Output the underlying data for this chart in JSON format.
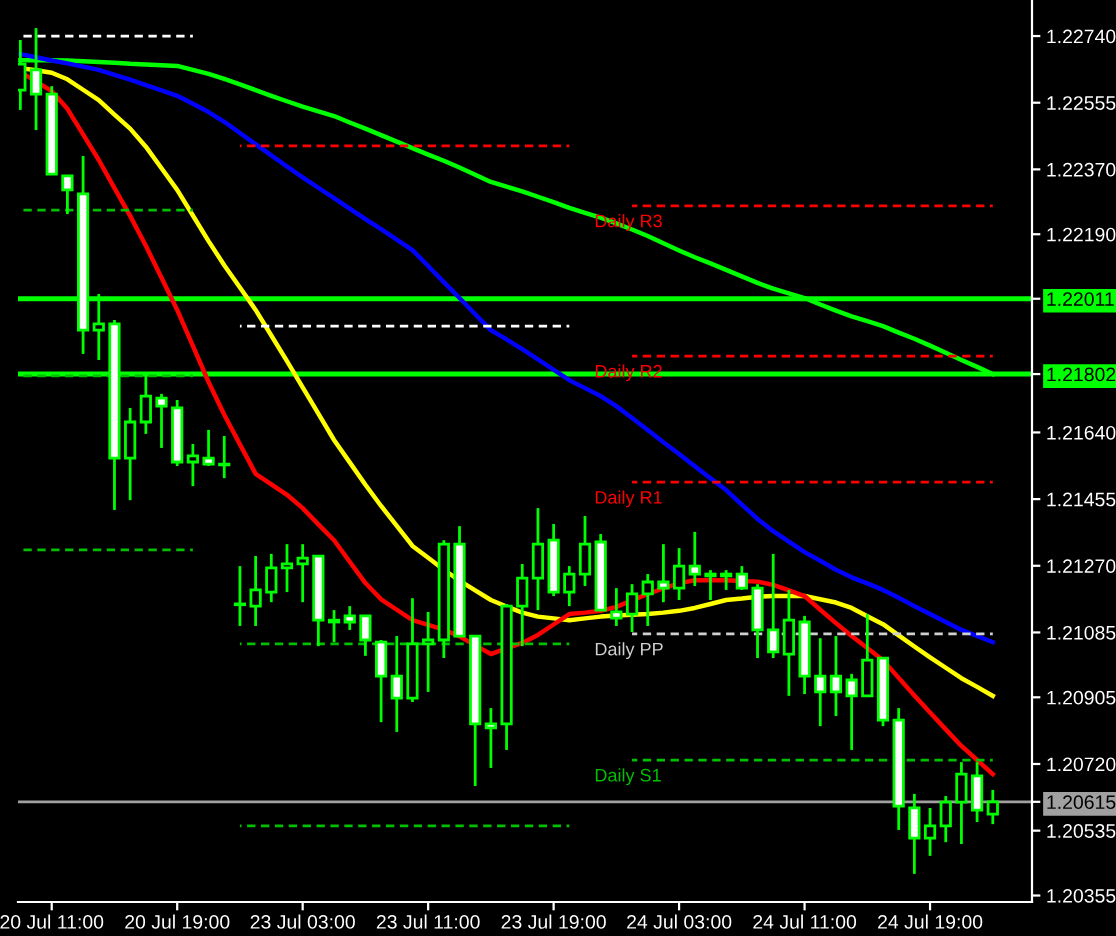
{
  "chart_data": {
    "type": "candlestick",
    "categories": [
      null,
      null,
      "20 Jul 11:00",
      null,
      null,
      null,
      null,
      null,
      null,
      null,
      "20 Jul 19:00",
      null,
      null,
      null,
      null,
      null,
      null,
      null,
      "23 Jul 03:00",
      null,
      null,
      null,
      null,
      null,
      null,
      null,
      "23 Jul 11:00",
      null,
      null,
      null,
      null,
      null,
      null,
      null,
      "23 Jul 19:00",
      null,
      null,
      null,
      null,
      null,
      null,
      null,
      "24 Jul 03:00",
      null,
      null,
      null,
      null,
      null,
      null,
      null,
      "24 Jul 11:00",
      null,
      null,
      null,
      null,
      null,
      null,
      null,
      "24 Jul 19:00",
      null,
      null,
      null,
      null,
      null,
      null
    ],
    "ylim": [
      1.20337,
      1.2284
    ],
    "yticks": [
      {
        "value": 1.2274,
        "label": "1.22740"
      },
      {
        "value": 1.22555,
        "label": "1.22555"
      },
      {
        "value": 1.2237,
        "label": "1.22370"
      },
      {
        "value": 1.2219,
        "label": "1.22190"
      },
      {
        "value": 1.22011,
        "label": "1.22011"
      },
      {
        "value": 1.21802,
        "label": "1.21802"
      },
      {
        "value": 1.2164,
        "label": "1.21640"
      },
      {
        "value": 1.21455,
        "label": "1.21455"
      },
      {
        "value": 1.2127,
        "label": "1.21270"
      },
      {
        "value": 1.21085,
        "label": "1.21085"
      },
      {
        "value": 1.20905,
        "label": "1.20905"
      },
      {
        "value": 1.2072,
        "label": "1.20720"
      },
      {
        "value": 1.20615,
        "label": "1.20615"
      },
      {
        "value": 1.20535,
        "label": "1.20535"
      },
      {
        "value": 1.20355,
        "label": "1.20355"
      }
    ],
    "ref_lines": [
      {
        "axis": "y",
        "value": 1.22011,
        "color": "#00ff00",
        "line_style": "solid"
      },
      {
        "axis": "y",
        "value": 1.21802,
        "color": "#00ff00",
        "line_style": "solid"
      },
      {
        "axis": "y",
        "value": 1.20615,
        "color": "#a0a0a0",
        "line_style": "solid"
      }
    ],
    "series": [
      {
        "type": "line",
        "color": "#00ff00",
        "line_style": "solid",
        "values": [
          1.22673,
          1.22673,
          1.22673,
          1.22672,
          1.2267,
          1.22668,
          1.22666,
          1.22663,
          1.22661,
          1.22659,
          1.22657,
          1.22646,
          1.22635,
          1.22621,
          1.22606,
          1.2259,
          1.22574,
          1.22559,
          1.22544,
          1.22531,
          1.22518,
          1.225,
          1.22483,
          1.22465,
          1.22447,
          1.22429,
          1.22411,
          1.22394,
          1.22375,
          1.22355,
          1.22335,
          1.22322,
          1.22309,
          1.22294,
          1.22279,
          1.22263,
          1.22249,
          1.22236,
          1.2222,
          1.22203,
          1.22185,
          1.22165,
          1.22145,
          1.22126,
          1.22109,
          1.22091,
          1.22073,
          1.22055,
          1.22039,
          1.22026,
          1.22013,
          1.21995,
          1.21978,
          1.21962,
          1.21949,
          1.21935,
          1.21917,
          1.219,
          1.21881,
          1.21861,
          1.21841,
          1.21822,
          1.21802,
          null,
          null
        ]
      },
      {
        "type": "line",
        "color": "#0000ff",
        "line_style": "solid",
        "values": [
          1.2269,
          1.22681,
          1.22672,
          1.22664,
          1.22655,
          1.22646,
          1.22632,
          1.22619,
          1.22604,
          1.22589,
          1.22574,
          1.22552,
          1.22529,
          1.22502,
          1.22471,
          1.2244,
          1.22409,
          1.22378,
          1.22348,
          1.22319,
          1.2229,
          1.22261,
          1.22232,
          1.22204,
          1.22175,
          1.22146,
          1.22102,
          1.22057,
          1.22013,
          1.21968,
          1.21924,
          1.21898,
          1.21871,
          1.21843,
          1.21814,
          1.21785,
          1.21763,
          1.21741,
          1.21713,
          1.2168,
          1.21647,
          1.21613,
          1.2158,
          1.21546,
          1.21513,
          1.2148,
          1.2144,
          1.214,
          1.21366,
          1.21337,
          1.21308,
          1.21284,
          1.21259,
          1.21238,
          1.21221,
          1.21203,
          1.21181,
          1.21158,
          1.21136,
          1.21114,
          1.21092,
          1.21075,
          1.21058,
          null,
          null
        ]
      },
      {
        "type": "line",
        "color": "#ffff00",
        "line_style": "solid",
        "values": [
          1.22651,
          1.22645,
          1.22638,
          1.2262,
          1.22591,
          1.22562,
          1.22522,
          1.22483,
          1.22433,
          1.22373,
          1.22313,
          1.22242,
          1.22171,
          1.22104,
          1.22042,
          1.2198,
          1.21909,
          1.21838,
          1.21765,
          1.21692,
          1.21619,
          1.21557,
          1.21495,
          1.21436,
          1.21381,
          1.21325,
          1.21292,
          1.21259,
          1.21229,
          1.21202,
          1.21175,
          1.21157,
          1.2114,
          1.21129,
          1.21124,
          1.21119,
          1.21124,
          1.21129,
          1.21132,
          1.21134,
          1.21136,
          1.2114,
          1.21145,
          1.21153,
          1.21164,
          1.21175,
          1.21179,
          1.21184,
          1.21186,
          1.21186,
          1.21186,
          1.21177,
          1.21168,
          1.21153,
          1.2113,
          1.21108,
          1.21077,
          1.21046,
          1.21016,
          1.20987,
          1.20958,
          1.20934,
          1.20909,
          null,
          null
        ]
      },
      {
        "type": "line",
        "color": "#ff0000",
        "line_style": "solid",
        "values": [
          1.2264,
          1.22614,
          1.22587,
          1.22538,
          1.22467,
          1.22396,
          1.22318,
          1.22241,
          1.22158,
          1.22069,
          1.2198,
          1.2188,
          1.2178,
          1.21689,
          1.21607,
          1.21525,
          1.21496,
          1.21467,
          1.2143,
          1.21385,
          1.21341,
          1.21281,
          1.21222,
          1.21177,
          1.21148,
          1.21119,
          1.21106,
          1.21093,
          1.21074,
          1.21049,
          1.21025,
          1.21041,
          1.21056,
          1.21078,
          1.21107,
          1.21136,
          1.2114,
          1.21145,
          1.21156,
          1.21174,
          1.21192,
          1.21207,
          1.21222,
          1.2123,
          1.2123,
          1.2123,
          1.21228,
          1.21226,
          1.21217,
          1.21202,
          1.21186,
          1.21148,
          1.21111,
          1.21075,
          1.21042,
          1.21008,
          1.20959,
          1.2091,
          1.20863,
          1.20816,
          1.2077,
          1.20731,
          1.20692,
          null,
          null
        ]
      },
      {
        "type": "line",
        "color": "#ffffff",
        "line_style": "dashed",
        "values": [
          1.2274,
          1.2274,
          1.2274,
          1.2274,
          1.2274,
          1.2274,
          1.2274,
          1.2274,
          1.2274,
          1.2274,
          1.2274,
          1.2274,
          null,
          null,
          null,
          null,
          null,
          null,
          null,
          null,
          null,
          null,
          null,
          null,
          null,
          null,
          null,
          null,
          null,
          null,
          null,
          null,
          null,
          null,
          null,
          null,
          null,
          null,
          null,
          null,
          null,
          null,
          null,
          null,
          null,
          null,
          null,
          null,
          null,
          null,
          null,
          null,
          null,
          null,
          null,
          null,
          null,
          null,
          null,
          null,
          null,
          null,
          null,
          null,
          null
        ]
      },
      {
        "type": "line",
        "color": "#00c000",
        "line_style": "dashed",
        "values": [
          1.22257,
          1.22257,
          1.22257,
          1.22257,
          1.22257,
          1.22257,
          1.22257,
          1.22257,
          1.22257,
          1.22257,
          1.22257,
          1.22257,
          null,
          null,
          null,
          null,
          null,
          null,
          null,
          null,
          null,
          null,
          null,
          null,
          null,
          null,
          null,
          null,
          null,
          null,
          null,
          null,
          null,
          null,
          null,
          null,
          null,
          null,
          null,
          null,
          null,
          null,
          null,
          null,
          null,
          null,
          null,
          null,
          null,
          null,
          null,
          null,
          null,
          null,
          null,
          null,
          null,
          null,
          null,
          null,
          null,
          null,
          null,
          null,
          null
        ]
      },
      {
        "type": "line",
        "color": "#00c000",
        "line_style": "dashed",
        "values": [
          1.21797,
          1.21797,
          1.21797,
          1.21797,
          1.21797,
          1.21797,
          1.21797,
          1.21797,
          1.21797,
          1.21797,
          1.21797,
          1.21797,
          null,
          null,
          null,
          null,
          null,
          null,
          null,
          null,
          null,
          null,
          null,
          null,
          null,
          null,
          null,
          null,
          null,
          null,
          null,
          null,
          null,
          null,
          null,
          null,
          null,
          null,
          null,
          null,
          null,
          null,
          null,
          null,
          null,
          null,
          null,
          null,
          null,
          null,
          null,
          null,
          null,
          null,
          null,
          null,
          null,
          null,
          null,
          null,
          null,
          null,
          null,
          null,
          null
        ]
      },
      {
        "type": "line",
        "color": "#00c000",
        "line_style": "dashed",
        "values": [
          1.21314,
          1.21314,
          1.21314,
          1.21314,
          1.21314,
          1.21314,
          1.21314,
          1.21314,
          1.21314,
          1.21314,
          1.21314,
          1.21314,
          null,
          null,
          null,
          null,
          null,
          null,
          null,
          null,
          null,
          null,
          null,
          null,
          null,
          null,
          null,
          null,
          null,
          null,
          null,
          null,
          null,
          null,
          null,
          null,
          null,
          null,
          null,
          null,
          null,
          null,
          null,
          null,
          null,
          null,
          null,
          null,
          null,
          null,
          null,
          null,
          null,
          null,
          null,
          null,
          null,
          null,
          null,
          null,
          null,
          null,
          null,
          null,
          null
        ]
      },
      {
        "type": "line",
        "color": "#ff0000",
        "line_style": "dashed",
        "values": [
          null,
          null,
          null,
          null,
          null,
          null,
          null,
          null,
          null,
          null,
          null,
          null,
          null,
          null,
          1.22435,
          1.22435,
          1.22435,
          1.22435,
          1.22435,
          1.22435,
          1.22435,
          1.22435,
          1.22435,
          1.22435,
          1.22435,
          1.22435,
          1.22435,
          1.22435,
          1.22435,
          1.22435,
          1.22435,
          1.22435,
          1.22435,
          1.22435,
          1.22435,
          1.22435,
          null,
          null,
          null,
          null,
          null,
          null,
          null,
          null,
          null,
          null,
          null,
          null,
          null,
          null,
          null,
          null,
          null,
          null,
          null,
          null,
          null,
          null,
          null,
          null,
          null,
          null,
          null,
          null,
          null
        ]
      },
      {
        "type": "line",
        "color": "#ffffff",
        "line_style": "dashed",
        "values": [
          null,
          null,
          null,
          null,
          null,
          null,
          null,
          null,
          null,
          null,
          null,
          null,
          null,
          null,
          1.21935,
          1.21935,
          1.21935,
          1.21935,
          1.21935,
          1.21935,
          1.21935,
          1.21935,
          1.21935,
          1.21935,
          1.21935,
          1.21935,
          1.21935,
          1.21935,
          1.21935,
          1.21935,
          1.21935,
          1.21935,
          1.21935,
          1.21935,
          1.21935,
          1.21935,
          null,
          null,
          null,
          null,
          null,
          null,
          null,
          null,
          null,
          null,
          null,
          null,
          null,
          null,
          null,
          null,
          null,
          null,
          null,
          null,
          null,
          null,
          null,
          null,
          null,
          null,
          null,
          null,
          null
        ]
      },
      {
        "type": "line",
        "color": "#00c000",
        "line_style": "dashed",
        "values": [
          null,
          null,
          null,
          null,
          null,
          null,
          null,
          null,
          null,
          null,
          null,
          null,
          null,
          null,
          1.21053,
          1.21053,
          1.21053,
          1.21053,
          1.21053,
          1.21053,
          1.21053,
          1.21053,
          1.21053,
          1.21053,
          1.21053,
          1.21053,
          1.21053,
          1.21053,
          1.21053,
          1.21053,
          1.21053,
          1.21053,
          1.21053,
          1.21053,
          1.21053,
          1.21053,
          null,
          null,
          null,
          null,
          null,
          null,
          null,
          null,
          null,
          null,
          null,
          null,
          null,
          null,
          null,
          null,
          null,
          null,
          null,
          null,
          null,
          null,
          null,
          null,
          null,
          null,
          null,
          null,
          null
        ]
      },
      {
        "type": "line",
        "color": "#00c000",
        "line_style": "dashed",
        "values": [
          null,
          null,
          null,
          null,
          null,
          null,
          null,
          null,
          null,
          null,
          null,
          null,
          null,
          null,
          1.20548,
          1.20548,
          1.20548,
          1.20548,
          1.20548,
          1.20548,
          1.20548,
          1.20548,
          1.20548,
          1.20548,
          1.20548,
          1.20548,
          1.20548,
          1.20548,
          1.20548,
          1.20548,
          1.20548,
          1.20548,
          1.20548,
          1.20548,
          1.20548,
          1.20548,
          null,
          null,
          null,
          null,
          null,
          null,
          null,
          null,
          null,
          null,
          null,
          null,
          null,
          null,
          null,
          null,
          null,
          null,
          null,
          null,
          null,
          null,
          null,
          null,
          null,
          null,
          null,
          null,
          null
        ]
      },
      {
        "type": "line",
        "name": "Daily R3",
        "color": "#ff0000",
        "line_style": "dashed",
        "values": [
          null,
          null,
          null,
          null,
          null,
          null,
          null,
          null,
          null,
          null,
          null,
          null,
          null,
          null,
          null,
          null,
          null,
          null,
          null,
          null,
          null,
          null,
          null,
          null,
          null,
          null,
          null,
          null,
          null,
          null,
          null,
          null,
          null,
          null,
          null,
          null,
          null,
          null,
          null,
          1.22269,
          1.22269,
          1.22269,
          1.22269,
          1.22269,
          1.22269,
          1.22269,
          1.22269,
          1.22269,
          1.22269,
          1.22269,
          1.22269,
          1.22269,
          1.22269,
          1.22269,
          1.22269,
          1.22269,
          1.22269,
          1.22269,
          1.22269,
          1.22269,
          1.22269,
          1.22269,
          1.22269,
          null,
          null
        ]
      },
      {
        "type": "line",
        "name": "Daily R2",
        "color": "#ff0000",
        "line_style": "dashed",
        "values": [
          null,
          null,
          null,
          null,
          null,
          null,
          null,
          null,
          null,
          null,
          null,
          null,
          null,
          null,
          null,
          null,
          null,
          null,
          null,
          null,
          null,
          null,
          null,
          null,
          null,
          null,
          null,
          null,
          null,
          null,
          null,
          null,
          null,
          null,
          null,
          null,
          null,
          null,
          null,
          1.21852,
          1.21852,
          1.21852,
          1.21852,
          1.21852,
          1.21852,
          1.21852,
          1.21852,
          1.21852,
          1.21852,
          1.21852,
          1.21852,
          1.21852,
          1.21852,
          1.21852,
          1.21852,
          1.21852,
          1.21852,
          1.21852,
          1.21852,
          1.21852,
          1.21852,
          1.21852,
          1.21852,
          null,
          null
        ]
      },
      {
        "type": "line",
        "name": "Daily R1",
        "color": "#ff0000",
        "line_style": "dashed",
        "values": [
          null,
          null,
          null,
          null,
          null,
          null,
          null,
          null,
          null,
          null,
          null,
          null,
          null,
          null,
          null,
          null,
          null,
          null,
          null,
          null,
          null,
          null,
          null,
          null,
          null,
          null,
          null,
          null,
          null,
          null,
          null,
          null,
          null,
          null,
          null,
          null,
          null,
          null,
          null,
          1.21502,
          1.21502,
          1.21502,
          1.21502,
          1.21502,
          1.21502,
          1.21502,
          1.21502,
          1.21502,
          1.21502,
          1.21502,
          1.21502,
          1.21502,
          1.21502,
          1.21502,
          1.21502,
          1.21502,
          1.21502,
          1.21502,
          1.21502,
          1.21502,
          1.21502,
          1.21502,
          1.21502,
          null,
          null
        ]
      },
      {
        "type": "line",
        "name": "Daily PP",
        "color": "#d0d0d0",
        "line_style": "dashed",
        "values": [
          null,
          null,
          null,
          null,
          null,
          null,
          null,
          null,
          null,
          null,
          null,
          null,
          null,
          null,
          null,
          null,
          null,
          null,
          null,
          null,
          null,
          null,
          null,
          null,
          null,
          null,
          null,
          null,
          null,
          null,
          null,
          null,
          null,
          null,
          null,
          null,
          null,
          null,
          null,
          1.21081,
          1.21081,
          1.21081,
          1.21081,
          1.21081,
          1.21081,
          1.21081,
          1.21081,
          1.21081,
          1.21081,
          1.21081,
          1.21081,
          1.21081,
          1.21081,
          1.21081,
          1.21081,
          1.21081,
          1.21081,
          1.21081,
          1.21081,
          1.21081,
          1.21081,
          1.21081,
          1.21081,
          null,
          null
        ]
      },
      {
        "type": "line",
        "name": "Daily S1",
        "color": "#00c000",
        "line_style": "dashed",
        "values": [
          null,
          null,
          null,
          null,
          null,
          null,
          null,
          null,
          null,
          null,
          null,
          null,
          null,
          null,
          null,
          null,
          null,
          null,
          null,
          null,
          null,
          null,
          null,
          null,
          null,
          null,
          null,
          null,
          null,
          null,
          null,
          null,
          null,
          null,
          null,
          null,
          null,
          null,
          null,
          1.20731,
          1.20731,
          1.20731,
          1.20731,
          1.20731,
          1.20731,
          1.20731,
          1.20731,
          1.20731,
          1.20731,
          1.20731,
          1.20731,
          1.20731,
          1.20731,
          1.20731,
          1.20731,
          1.20731,
          1.20731,
          1.20731,
          1.20731,
          1.20731,
          1.20731,
          1.20731,
          1.20731,
          null,
          null
        ]
      },
      {
        "color": "#00ff00",
        "ohlc": [
          [
            1.2259,
            1.22729,
            1.22535,
            1.22662
          ],
          [
            1.22646,
            1.22762,
            1.22479,
            1.22579
          ],
          [
            1.22579,
            1.22601,
            1.22357,
            1.22357
          ],
          [
            1.22352,
            1.22352,
            1.22246,
            1.22313
          ],
          [
            1.22302,
            1.22407,
            1.21858,
            1.21924
          ],
          [
            1.21924,
            1.22024,
            1.21841,
            1.21941
          ],
          [
            1.21941,
            1.21952,
            1.21425,
            1.21569
          ],
          [
            1.21569,
            1.21708,
            1.21452,
            1.21669
          ],
          [
            1.21669,
            1.21797,
            1.21636,
            1.21741
          ],
          [
            1.21735,
            1.21747,
            1.21597,
            1.21713
          ],
          [
            1.21708,
            1.2173,
            1.21547,
            1.21558
          ],
          [
            1.21558,
            1.21608,
            1.21491,
            1.21575
          ],
          [
            1.21569,
            1.21647,
            1.21547,
            1.21552
          ],
          [
            1.21552,
            1.2163,
            1.21513,
            1.2155
          ],
          [
            1.21164,
            1.21269,
            1.21103,
            1.21162
          ],
          [
            1.21158,
            1.21297,
            1.21103,
            1.21203
          ],
          [
            1.21197,
            1.21303,
            1.21169,
            1.21264
          ],
          [
            1.21264,
            1.2133,
            1.21197,
            1.21275
          ],
          [
            1.21275,
            1.2133,
            1.21169,
            1.21291
          ],
          [
            1.21297,
            1.21297,
            1.21047,
            1.21119
          ],
          [
            1.21119,
            1.21147,
            1.21058,
            1.21114
          ],
          [
            1.21131,
            1.21158,
            1.21092,
            1.21114
          ],
          [
            1.21131,
            1.21131,
            1.2102,
            1.21064
          ],
          [
            1.21058,
            1.21064,
            1.20836,
            1.20964
          ],
          [
            1.20964,
            1.21075,
            1.20809,
            1.20903
          ],
          [
            1.20903,
            1.2118,
            1.20892,
            1.21053
          ],
          [
            1.21053,
            1.21142,
            1.2092,
            1.21064
          ],
          [
            1.21064,
            1.21341,
            1.21014,
            1.2133
          ],
          [
            1.2133,
            1.2138,
            1.21075,
            1.21075
          ],
          [
            1.21075,
            1.21075,
            1.20659,
            1.20831
          ],
          [
            1.20831,
            1.20875,
            1.20709,
            1.2082
          ],
          [
            1.20831,
            1.21164,
            1.20759,
            1.21158
          ],
          [
            1.21158,
            1.21275,
            1.21047,
            1.21236
          ],
          [
            1.21236,
            1.2143,
            1.21147,
            1.2133
          ],
          [
            1.21341,
            1.21386,
            1.21186,
            1.21197
          ],
          [
            1.21197,
            1.21269,
            1.21158,
            1.21247
          ],
          [
            1.21247,
            1.21408,
            1.21214,
            1.2133
          ],
          [
            1.21336,
            1.21358,
            1.21147,
            1.21147
          ],
          [
            1.21142,
            1.21208,
            1.21103,
            1.21125
          ],
          [
            1.21136,
            1.21219,
            1.21086,
            1.21192
          ],
          [
            1.21192,
            1.21247,
            1.21103,
            1.21225
          ],
          [
            1.21225,
            1.2133,
            1.21169,
            1.21208
          ],
          [
            1.21208,
            1.21319,
            1.21175,
            1.21269
          ],
          [
            1.21269,
            1.21364,
            1.21214,
            1.21247
          ],
          [
            1.21247,
            1.21258,
            1.21175,
            1.21242
          ],
          [
            1.21247,
            1.21258,
            1.21203,
            1.21242
          ],
          [
            1.21247,
            1.21269,
            1.21203,
            1.21208
          ],
          [
            1.21208,
            1.21219,
            1.21014,
            1.21092
          ],
          [
            1.21092,
            1.21303,
            1.21014,
            1.21031
          ],
          [
            1.21025,
            1.21203,
            1.20909,
            1.21119
          ],
          [
            1.21114,
            1.21131,
            1.20914,
            1.20964
          ],
          [
            1.20964,
            1.21069,
            1.20825,
            1.2092
          ],
          [
            1.20964,
            1.21075,
            1.20853,
            1.2092
          ],
          [
            1.20953,
            1.2097,
            1.20759,
            1.20909
          ],
          [
            1.20909,
            1.21136,
            1.20909,
            1.21008
          ],
          [
            1.21014,
            1.21014,
            1.20825,
            1.20842
          ],
          [
            1.20842,
            1.20875,
            1.20537,
            1.20603
          ],
          [
            1.20598,
            1.20637,
            1.20415,
            1.20514
          ],
          [
            1.20514,
            1.20598,
            1.20465,
            1.20548
          ],
          [
            1.20548,
            1.20631,
            1.20503,
            1.20614
          ],
          [
            1.20614,
            1.20725,
            1.20498,
            1.20692
          ],
          [
            1.20687,
            1.20725,
            1.20559,
            1.20592
          ],
          [
            1.20581,
            1.20648,
            1.20553,
            1.20615
          ],
          null,
          null
        ]
      }
    ]
  }
}
